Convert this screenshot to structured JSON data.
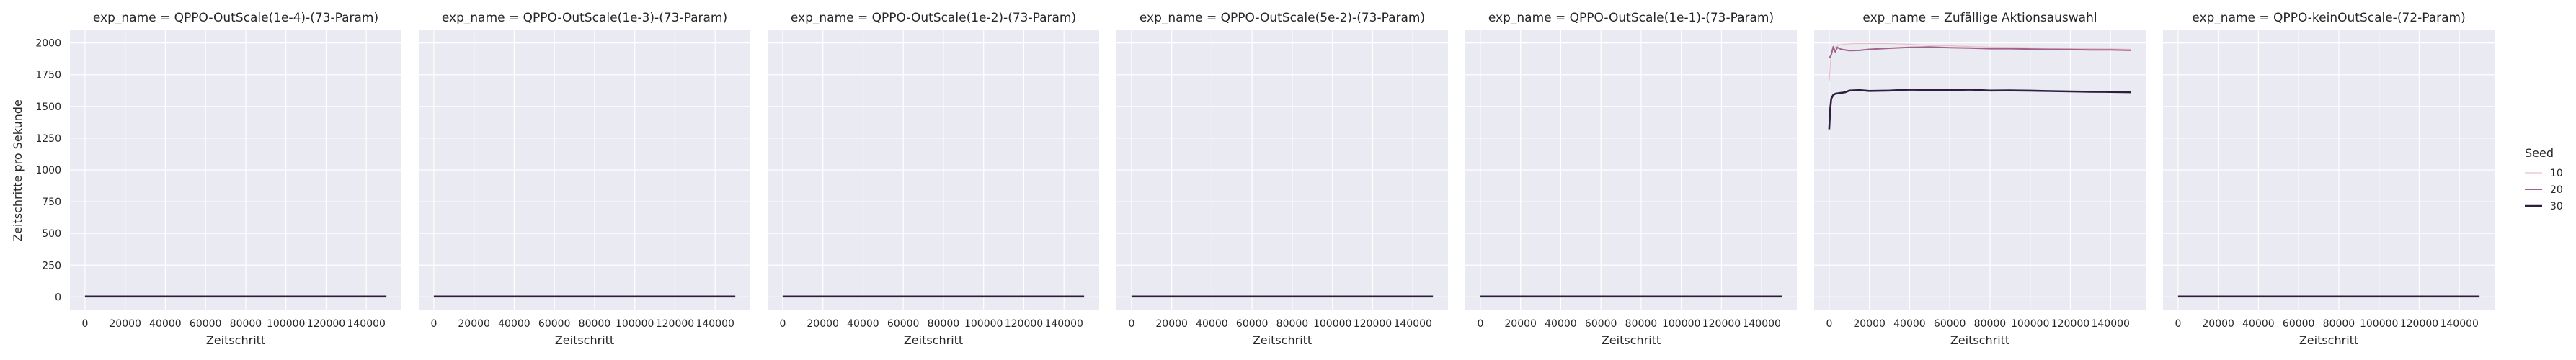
{
  "figure": {
    "ylabel": "Zeitschritte pro Sekunde",
    "xlabel": "Zeitschritt",
    "legend_title": "Seed",
    "legend_placement": "right",
    "grid": true,
    "background": "#eaeaf2",
    "grid_color": "#ffffff"
  },
  "chart_data": [
    {
      "type": "line",
      "title": "exp_name = QPPO-OutScale(1e-4)-(73-Param)",
      "xlabel": "Zeitschritt",
      "ylabel": "Zeitschritte pro Sekunde",
      "xlim": [
        -7500,
        157500
      ],
      "ylim": [
        -100,
        2100
      ],
      "x_ticks": [
        "0",
        "20000",
        "40000",
        "60000",
        "80000",
        "100000",
        "120000",
        "140000"
      ],
      "y_ticks": [
        "0",
        "250",
        "500",
        "750",
        "1000",
        "1250",
        "1500",
        "1750",
        "2000"
      ],
      "series": [
        {
          "name": "10",
          "x": [
            0,
            150000
          ],
          "y": [
            3,
            3
          ]
        },
        {
          "name": "20",
          "x": [
            0,
            150000
          ],
          "y": [
            3,
            3
          ]
        },
        {
          "name": "30",
          "x": [
            0,
            150000
          ],
          "y": [
            3,
            3
          ]
        }
      ]
    },
    {
      "type": "line",
      "title": "exp_name = QPPO-OutScale(1e-3)-(73-Param)",
      "xlabel": "Zeitschritt",
      "xlim": [
        -7500,
        157500
      ],
      "ylim": [
        -100,
        2100
      ],
      "x_ticks": [
        "0",
        "20000",
        "40000",
        "60000",
        "80000",
        "100000",
        "120000",
        "140000"
      ],
      "series": [
        {
          "name": "10",
          "x": [
            0,
            150000
          ],
          "y": [
            3,
            3
          ]
        },
        {
          "name": "20",
          "x": [
            0,
            150000
          ],
          "y": [
            3,
            3
          ]
        },
        {
          "name": "30",
          "x": [
            0,
            150000
          ],
          "y": [
            3,
            3
          ]
        }
      ]
    },
    {
      "type": "line",
      "title": "exp_name = QPPO-OutScale(1e-2)-(73-Param)",
      "xlabel": "Zeitschritt",
      "xlim": [
        -7500,
        157500
      ],
      "ylim": [
        -100,
        2100
      ],
      "x_ticks": [
        "0",
        "20000",
        "40000",
        "60000",
        "80000",
        "100000",
        "120000",
        "140000"
      ],
      "series": [
        {
          "name": "10",
          "x": [
            0,
            150000
          ],
          "y": [
            3,
            3
          ]
        },
        {
          "name": "20",
          "x": [
            0,
            150000
          ],
          "y": [
            3,
            3
          ]
        },
        {
          "name": "30",
          "x": [
            0,
            150000
          ],
          "y": [
            3,
            3
          ]
        }
      ]
    },
    {
      "type": "line",
      "title": "exp_name = QPPO-OutScale(5e-2)-(73-Param)",
      "xlabel": "Zeitschritt",
      "xlim": [
        -7500,
        157500
      ],
      "ylim": [
        -100,
        2100
      ],
      "x_ticks": [
        "0",
        "20000",
        "40000",
        "60000",
        "80000",
        "100000",
        "120000",
        "140000"
      ],
      "series": [
        {
          "name": "10",
          "x": [
            0,
            150000
          ],
          "y": [
            3,
            3
          ]
        },
        {
          "name": "20",
          "x": [
            0,
            150000
          ],
          "y": [
            3,
            3
          ]
        },
        {
          "name": "30",
          "x": [
            0,
            150000
          ],
          "y": [
            3,
            3
          ]
        }
      ]
    },
    {
      "type": "line",
      "title": "exp_name = QPPO-OutScale(1e-1)-(73-Param)",
      "xlabel": "Zeitschritt",
      "xlim": [
        -7500,
        157500
      ],
      "ylim": [
        -100,
        2100
      ],
      "x_ticks": [
        "0",
        "20000",
        "40000",
        "60000",
        "80000",
        "100000",
        "120000",
        "140000"
      ],
      "series": [
        {
          "name": "10",
          "x": [
            0,
            150000
          ],
          "y": [
            3,
            3
          ]
        },
        {
          "name": "20",
          "x": [
            0,
            150000
          ],
          "y": [
            3,
            3
          ]
        },
        {
          "name": "30",
          "x": [
            0,
            150000
          ],
          "y": [
            3,
            3
          ]
        }
      ]
    },
    {
      "type": "line",
      "title": "exp_name = Zufällige Aktionsauswahl",
      "xlabel": "Zeitschritt",
      "xlim": [
        -7500,
        157500
      ],
      "ylim": [
        -100,
        2100
      ],
      "x_ticks": [
        "0",
        "20000",
        "40000",
        "60000",
        "80000",
        "100000",
        "120000",
        "140000"
      ],
      "series": [
        {
          "name": "10",
          "x": [
            0,
            1000,
            2500,
            5000,
            8000,
            12000,
            20000,
            30000,
            40000,
            50000,
            60000,
            70000,
            80000,
            90000,
            100000,
            110000,
            120000,
            130000,
            140000,
            150000
          ],
          "y": [
            1700,
            1930,
            1960,
            1985,
            1990,
            1995,
            1995,
            1995,
            1990,
            1980,
            1978,
            1972,
            1968,
            1965,
            1962,
            1960,
            1957,
            1955,
            1953,
            1950
          ]
        },
        {
          "name": "20",
          "x": [
            0,
            1000,
            2000,
            3000,
            4000,
            6000,
            10000,
            15000,
            20000,
            30000,
            40000,
            50000,
            60000,
            70000,
            80000,
            90000,
            100000,
            110000,
            120000,
            130000,
            140000,
            150000
          ],
          "y": [
            1880,
            1905,
            1970,
            1930,
            1965,
            1950,
            1940,
            1942,
            1950,
            1958,
            1965,
            1968,
            1962,
            1960,
            1955,
            1955,
            1952,
            1950,
            1948,
            1946,
            1945,
            1942
          ]
        },
        {
          "name": "30",
          "x": [
            0,
            500,
            1000,
            2000,
            3000,
            5000,
            8000,
            10000,
            15000,
            20000,
            30000,
            40000,
            50000,
            60000,
            70000,
            80000,
            90000,
            100000,
            110000,
            120000,
            130000,
            140000,
            150000
          ],
          "y": [
            1320,
            1480,
            1560,
            1590,
            1600,
            1605,
            1612,
            1625,
            1628,
            1622,
            1625,
            1632,
            1630,
            1628,
            1632,
            1625,
            1626,
            1624,
            1621,
            1618,
            1616,
            1614,
            1612
          ]
        }
      ]
    },
    {
      "type": "line",
      "title": "exp_name = QPPO-keinOutScale-(72-Param)",
      "xlabel": "Zeitschritt",
      "xlim": [
        -7500,
        157500
      ],
      "ylim": [
        -100,
        2100
      ],
      "x_ticks": [
        "0",
        "20000",
        "40000",
        "60000",
        "80000",
        "100000",
        "120000",
        "140000"
      ],
      "series": [
        {
          "name": "10",
          "x": [
            0,
            150000
          ],
          "y": [
            3,
            3
          ]
        },
        {
          "name": "20",
          "x": [
            0,
            150000
          ],
          "y": [
            3,
            3
          ]
        },
        {
          "name": "30",
          "x": [
            0,
            150000
          ],
          "y": [
            3,
            3
          ]
        }
      ]
    }
  ],
  "legend": {
    "title": "Seed",
    "entries": [
      {
        "label": "10",
        "color": "#e8c1c8"
      },
      {
        "label": "20",
        "color": "#a4628a"
      },
      {
        "label": "30",
        "color": "#2d1e3e"
      }
    ]
  }
}
